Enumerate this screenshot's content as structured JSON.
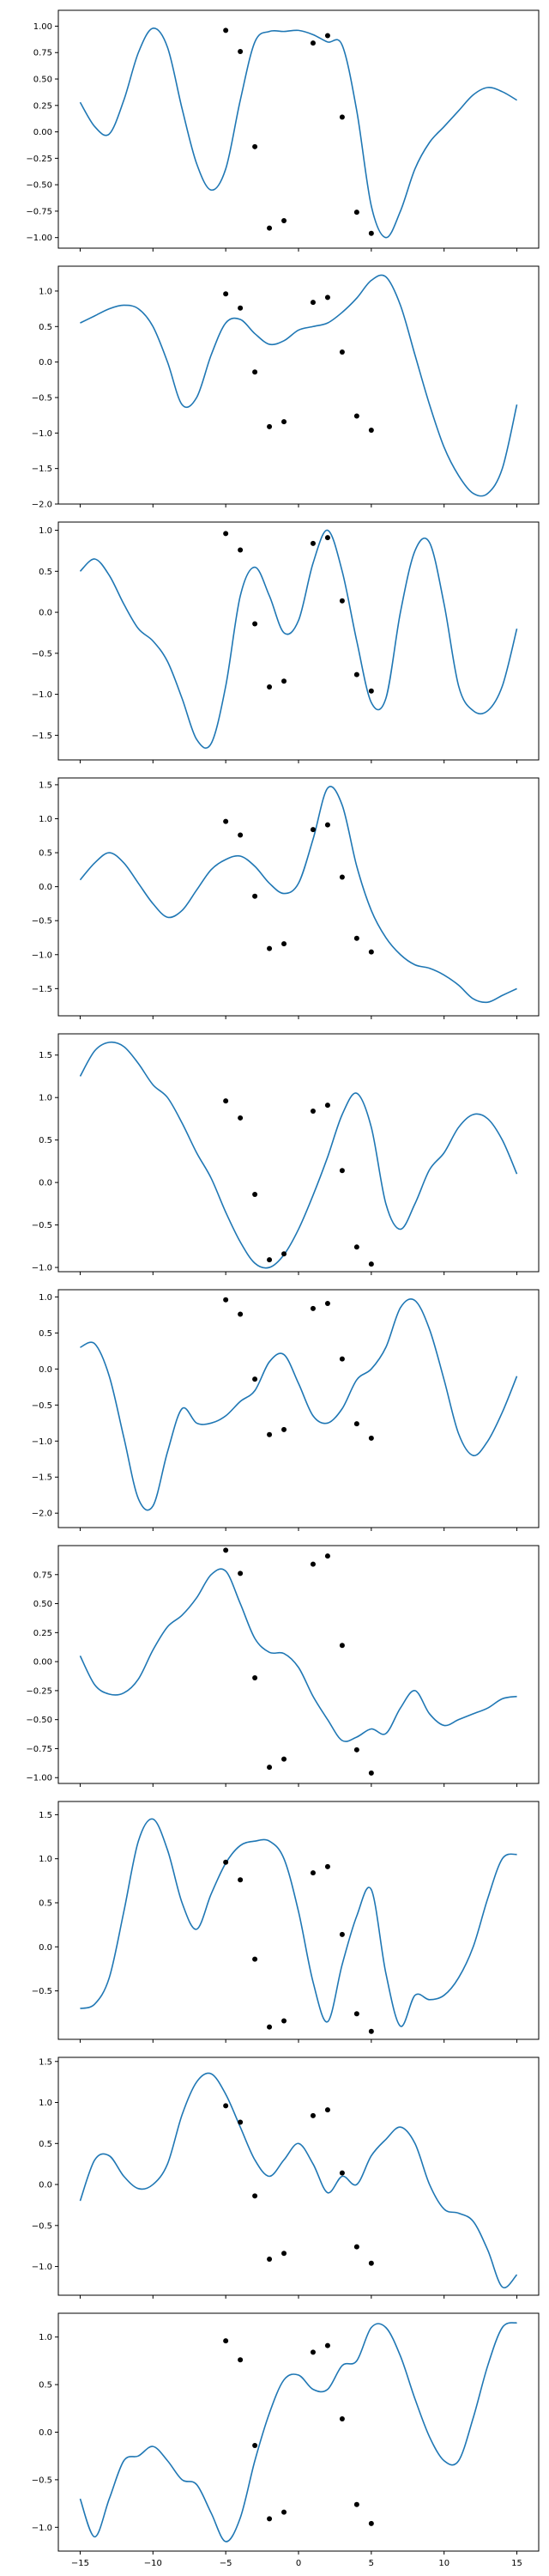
{
  "chart_data": {
    "type": "line",
    "layout": "vertical-stack",
    "shared_x_axis": true,
    "xlim": [
      -16.5,
      16.5
    ],
    "xticks": [
      -15,
      -10,
      -5,
      0,
      5,
      10,
      15
    ],
    "xtick_labels": [
      "−15",
      "−10",
      "−5",
      "0",
      "5",
      "10",
      "15"
    ],
    "line_color": "#1f77b4",
    "point_color": "#000000",
    "observations": {
      "x": [
        -5,
        -4,
        -3,
        -2,
        -1,
        1,
        2,
        3,
        4,
        5
      ],
      "y": [
        0.96,
        0.76,
        -0.14,
        -0.91,
        -0.84,
        0.84,
        0.91,
        0.14,
        -0.76,
        -0.96
      ]
    },
    "panels": [
      {
        "ylim": [
          -1.1,
          1.15
        ],
        "yticks": [
          -1.0,
          -0.75,
          -0.5,
          -0.25,
          0.0,
          0.25,
          0.5,
          0.75,
          1.0
        ],
        "ytick_labels": [
          "−1.00",
          "−0.75",
          "−0.50",
          "−0.25",
          "0.00",
          "0.25",
          "0.50",
          "0.75",
          "1.00"
        ],
        "x": [
          -15,
          -14,
          -13,
          -12,
          -11,
          -10,
          -9,
          -8,
          -7,
          -6,
          -5,
          -4,
          -3,
          -2,
          -1,
          0,
          1,
          2,
          3,
          4,
          5,
          6,
          7,
          8,
          9,
          10,
          11,
          12,
          13,
          14,
          15
        ],
        "y": [
          0.28,
          0.05,
          -0.02,
          0.3,
          0.75,
          0.98,
          0.8,
          0.22,
          -0.3,
          -0.55,
          -0.35,
          0.3,
          0.85,
          0.95,
          0.95,
          0.96,
          0.92,
          0.85,
          0.82,
          0.2,
          -0.7,
          -1.0,
          -0.75,
          -0.35,
          -0.1,
          0.05,
          0.2,
          0.35,
          0.42,
          0.38,
          0.3
        ]
      },
      {
        "ylim": [
          -2.0,
          1.35
        ],
        "yticks": [
          -2.0,
          -1.5,
          -1.0,
          -0.5,
          0.0,
          0.5,
          1.0
        ],
        "ytick_labels": [
          "−2.0",
          "−1.5",
          "−1.0",
          "−0.5",
          "0.0",
          "0.5",
          "1.0"
        ],
        "x": [
          -15,
          -14,
          -13,
          -12,
          -11,
          -10,
          -9,
          -8,
          -7,
          -6,
          -5,
          -4,
          -3,
          -2,
          -1,
          0,
          1,
          2,
          3,
          4,
          5,
          6,
          7,
          8,
          9,
          10,
          11,
          12,
          13,
          14,
          15
        ],
        "y": [
          0.55,
          0.65,
          0.75,
          0.8,
          0.75,
          0.5,
          0.0,
          -0.6,
          -0.5,
          0.1,
          0.55,
          0.6,
          0.4,
          0.25,
          0.3,
          0.45,
          0.5,
          0.55,
          0.7,
          0.9,
          1.15,
          1.2,
          0.8,
          0.1,
          -0.6,
          -1.2,
          -1.6,
          -1.85,
          -1.85,
          -1.5,
          -0.6
        ]
      },
      {
        "ylim": [
          -1.8,
          1.1
        ],
        "yticks": [
          -1.5,
          -1.0,
          -0.5,
          0.0,
          0.5,
          1.0
        ],
        "ytick_labels": [
          "−1.5",
          "−1.0",
          "−0.5",
          "0.0",
          "0.5",
          "1.0"
        ],
        "x": [
          -15,
          -14,
          -13,
          -12,
          -11,
          -10,
          -9,
          -8,
          -7,
          -6,
          -5,
          -4,
          -3,
          -2,
          -1,
          0,
          1,
          2,
          3,
          4,
          5,
          6,
          7,
          8,
          9,
          10,
          11,
          12,
          13,
          14,
          15
        ],
        "y": [
          0.5,
          0.65,
          0.45,
          0.1,
          -0.2,
          -0.35,
          -0.6,
          -1.05,
          -1.55,
          -1.6,
          -0.9,
          0.2,
          0.55,
          0.2,
          -0.25,
          -0.1,
          0.6,
          1.0,
          0.5,
          -0.35,
          -1.1,
          -1.05,
          0.0,
          0.75,
          0.85,
          0.1,
          -0.9,
          -1.2,
          -1.2,
          -0.9,
          -0.2
        ]
      },
      {
        "ylim": [
          -1.9,
          1.6
        ],
        "yticks": [
          -1.5,
          -1.0,
          -0.5,
          0.0,
          0.5,
          1.0,
          1.5
        ],
        "ytick_labels": [
          "−1.5",
          "−1.0",
          "−0.5",
          "0.0",
          "0.5",
          "1.0",
          "1.5"
        ],
        "x": [
          -15,
          -14,
          -13,
          -12,
          -11,
          -10,
          -9,
          -8,
          -7,
          -6,
          -5,
          -4,
          -3,
          -2,
          -1,
          0,
          1,
          2,
          3,
          4,
          5,
          6,
          7,
          8,
          9,
          10,
          11,
          12,
          13,
          14,
          15
        ],
        "y": [
          0.1,
          0.35,
          0.5,
          0.35,
          0.05,
          -0.25,
          -0.45,
          -0.35,
          -0.05,
          0.25,
          0.4,
          0.45,
          0.3,
          0.05,
          -0.1,
          0.05,
          0.7,
          1.45,
          1.2,
          0.3,
          -0.35,
          -0.75,
          -1.0,
          -1.15,
          -1.2,
          -1.3,
          -1.45,
          -1.65,
          -1.7,
          -1.6,
          -1.5
        ]
      },
      {
        "ylim": [
          -1.05,
          1.75
        ],
        "yticks": [
          -1.0,
          -0.5,
          0.0,
          0.5,
          1.0,
          1.5
        ],
        "ytick_labels": [
          "−1.0",
          "−0.5",
          "0.0",
          "0.5",
          "1.0",
          "1.5"
        ],
        "x": [
          -15,
          -14,
          -13,
          -12,
          -11,
          -10,
          -9,
          -8,
          -7,
          -6,
          -5,
          -4,
          -3,
          -2,
          -1,
          0,
          1,
          2,
          3,
          4,
          5,
          6,
          7,
          8,
          9,
          10,
          11,
          12,
          13,
          14,
          15
        ],
        "y": [
          1.25,
          1.55,
          1.65,
          1.6,
          1.4,
          1.15,
          1.0,
          0.7,
          0.35,
          0.05,
          -0.35,
          -0.7,
          -0.95,
          -1.0,
          -0.85,
          -0.55,
          -0.15,
          0.3,
          0.8,
          1.05,
          0.65,
          -0.25,
          -0.55,
          -0.25,
          0.15,
          0.35,
          0.65,
          0.8,
          0.75,
          0.5,
          0.1
        ]
      },
      {
        "ylim": [
          -2.2,
          1.1
        ],
        "yticks": [
          -2.0,
          -1.5,
          -1.0,
          -0.5,
          0.0,
          0.5,
          1.0
        ],
        "ytick_labels": [
          "−2.0",
          "−1.5",
          "−1.0",
          "−0.5",
          "0.0",
          "0.5",
          "1.0"
        ],
        "x": [
          -15,
          -14,
          -13,
          -12,
          -11,
          -10,
          -9,
          -8,
          -7,
          -6,
          -5,
          -4,
          -3,
          -2,
          -1,
          0,
          1,
          2,
          3,
          4,
          5,
          6,
          7,
          8,
          9,
          10,
          11,
          12,
          13,
          14,
          15
        ],
        "y": [
          0.3,
          0.35,
          -0.1,
          -0.95,
          -1.8,
          -1.9,
          -1.15,
          -0.55,
          -0.75,
          -0.75,
          -0.65,
          -0.45,
          -0.3,
          0.1,
          0.2,
          -0.2,
          -0.65,
          -0.75,
          -0.55,
          -0.15,
          0.0,
          0.3,
          0.85,
          0.95,
          0.55,
          -0.15,
          -0.9,
          -1.2,
          -1.0,
          -0.6,
          -0.1
        ]
      },
      {
        "ylim": [
          -1.05,
          1.0
        ],
        "yticks": [
          -1.0,
          -0.75,
          -0.5,
          -0.25,
          0.0,
          0.25,
          0.5,
          0.75
        ],
        "ytick_labels": [
          "−1.00",
          "−0.75",
          "−0.50",
          "−0.25",
          "0.00",
          "0.25",
          "0.50",
          "0.75"
        ],
        "x": [
          -15,
          -14,
          -13,
          -12,
          -11,
          -10,
          -9,
          -8,
          -7,
          -6,
          -5,
          -4,
          -3,
          -2,
          -1,
          0,
          1,
          2,
          3,
          4,
          5,
          6,
          7,
          8,
          9,
          10,
          11,
          12,
          13,
          14,
          15
        ],
        "y": [
          0.05,
          -0.2,
          -0.28,
          -0.27,
          -0.15,
          0.1,
          0.3,
          0.4,
          0.55,
          0.75,
          0.78,
          0.5,
          0.2,
          0.08,
          0.07,
          -0.05,
          -0.3,
          -0.5,
          -0.68,
          -0.65,
          -0.58,
          -0.62,
          -0.4,
          -0.25,
          -0.45,
          -0.55,
          -0.5,
          -0.45,
          -0.4,
          -0.32,
          -0.3
        ]
      },
      {
        "ylim": [
          -1.05,
          1.65
        ],
        "yticks": [
          -0.5,
          0.0,
          0.5,
          1.0,
          1.5
        ],
        "ytick_labels": [
          "−0.5",
          "0.0",
          "0.5",
          "1.0",
          "1.5"
        ],
        "x": [
          -15,
          -14,
          -13,
          -12,
          -11,
          -10,
          -9,
          -8,
          -7,
          -6,
          -5,
          -4,
          -3,
          -2,
          -1,
          0,
          1,
          2,
          3,
          4,
          5,
          6,
          7,
          8,
          9,
          10,
          11,
          12,
          13,
          14,
          15
        ],
        "y": [
          -0.7,
          -0.65,
          -0.35,
          0.4,
          1.2,
          1.45,
          1.1,
          0.5,
          0.2,
          0.6,
          0.95,
          1.15,
          1.2,
          1.2,
          1.0,
          0.4,
          -0.4,
          -0.85,
          -0.2,
          0.35,
          0.65,
          -0.3,
          -0.9,
          -0.55,
          -0.6,
          -0.55,
          -0.35,
          0.0,
          0.55,
          1.0,
          1.05
        ]
      },
      {
        "ylim": [
          -1.35,
          1.55
        ],
        "yticks": [
          -1.0,
          -0.5,
          0.0,
          0.5,
          1.0,
          1.5
        ],
        "ytick_labels": [
          "−1.0",
          "−0.5",
          "0.0",
          "0.5",
          "1.0",
          "1.5"
        ],
        "x": [
          -15,
          -14,
          -13,
          -12,
          -11,
          -10,
          -9,
          -8,
          -7,
          -6,
          -5,
          -4,
          -3,
          -2,
          -1,
          0,
          1,
          2,
          3,
          4,
          5,
          6,
          7,
          8,
          9,
          10,
          11,
          12,
          13,
          14,
          15
        ],
        "y": [
          -0.2,
          0.3,
          0.35,
          0.1,
          -0.05,
          0.0,
          0.25,
          0.85,
          1.25,
          1.35,
          1.1,
          0.7,
          0.3,
          0.1,
          0.3,
          0.5,
          0.25,
          -0.1,
          0.1,
          0.0,
          0.35,
          0.55,
          0.7,
          0.5,
          0.0,
          -0.3,
          -0.35,
          -0.45,
          -0.8,
          -1.25,
          -1.1
        ]
      },
      {
        "ylim": [
          -1.25,
          1.25
        ],
        "yticks": [
          -1.0,
          -0.5,
          0.0,
          0.5,
          1.0
        ],
        "ytick_labels": [
          "−1.0",
          "−0.5",
          "0.0",
          "0.5",
          "1.0"
        ],
        "x": [
          -15,
          -14,
          -13,
          -12,
          -11,
          -10,
          -9,
          -8,
          -7,
          -6,
          -5,
          -4,
          -3,
          -2,
          -1,
          0,
          1,
          2,
          3,
          4,
          5,
          6,
          7,
          8,
          9,
          10,
          11,
          12,
          13,
          14,
          15
        ],
        "y": [
          -0.7,
          -1.1,
          -0.7,
          -0.3,
          -0.25,
          -0.15,
          -0.3,
          -0.5,
          -0.55,
          -0.85,
          -1.15,
          -0.9,
          -0.3,
          0.2,
          0.55,
          0.6,
          0.45,
          0.45,
          0.7,
          0.75,
          1.1,
          1.1,
          0.8,
          0.35,
          -0.05,
          -0.3,
          -0.3,
          0.15,
          0.7,
          1.1,
          1.15
        ]
      }
    ]
  }
}
